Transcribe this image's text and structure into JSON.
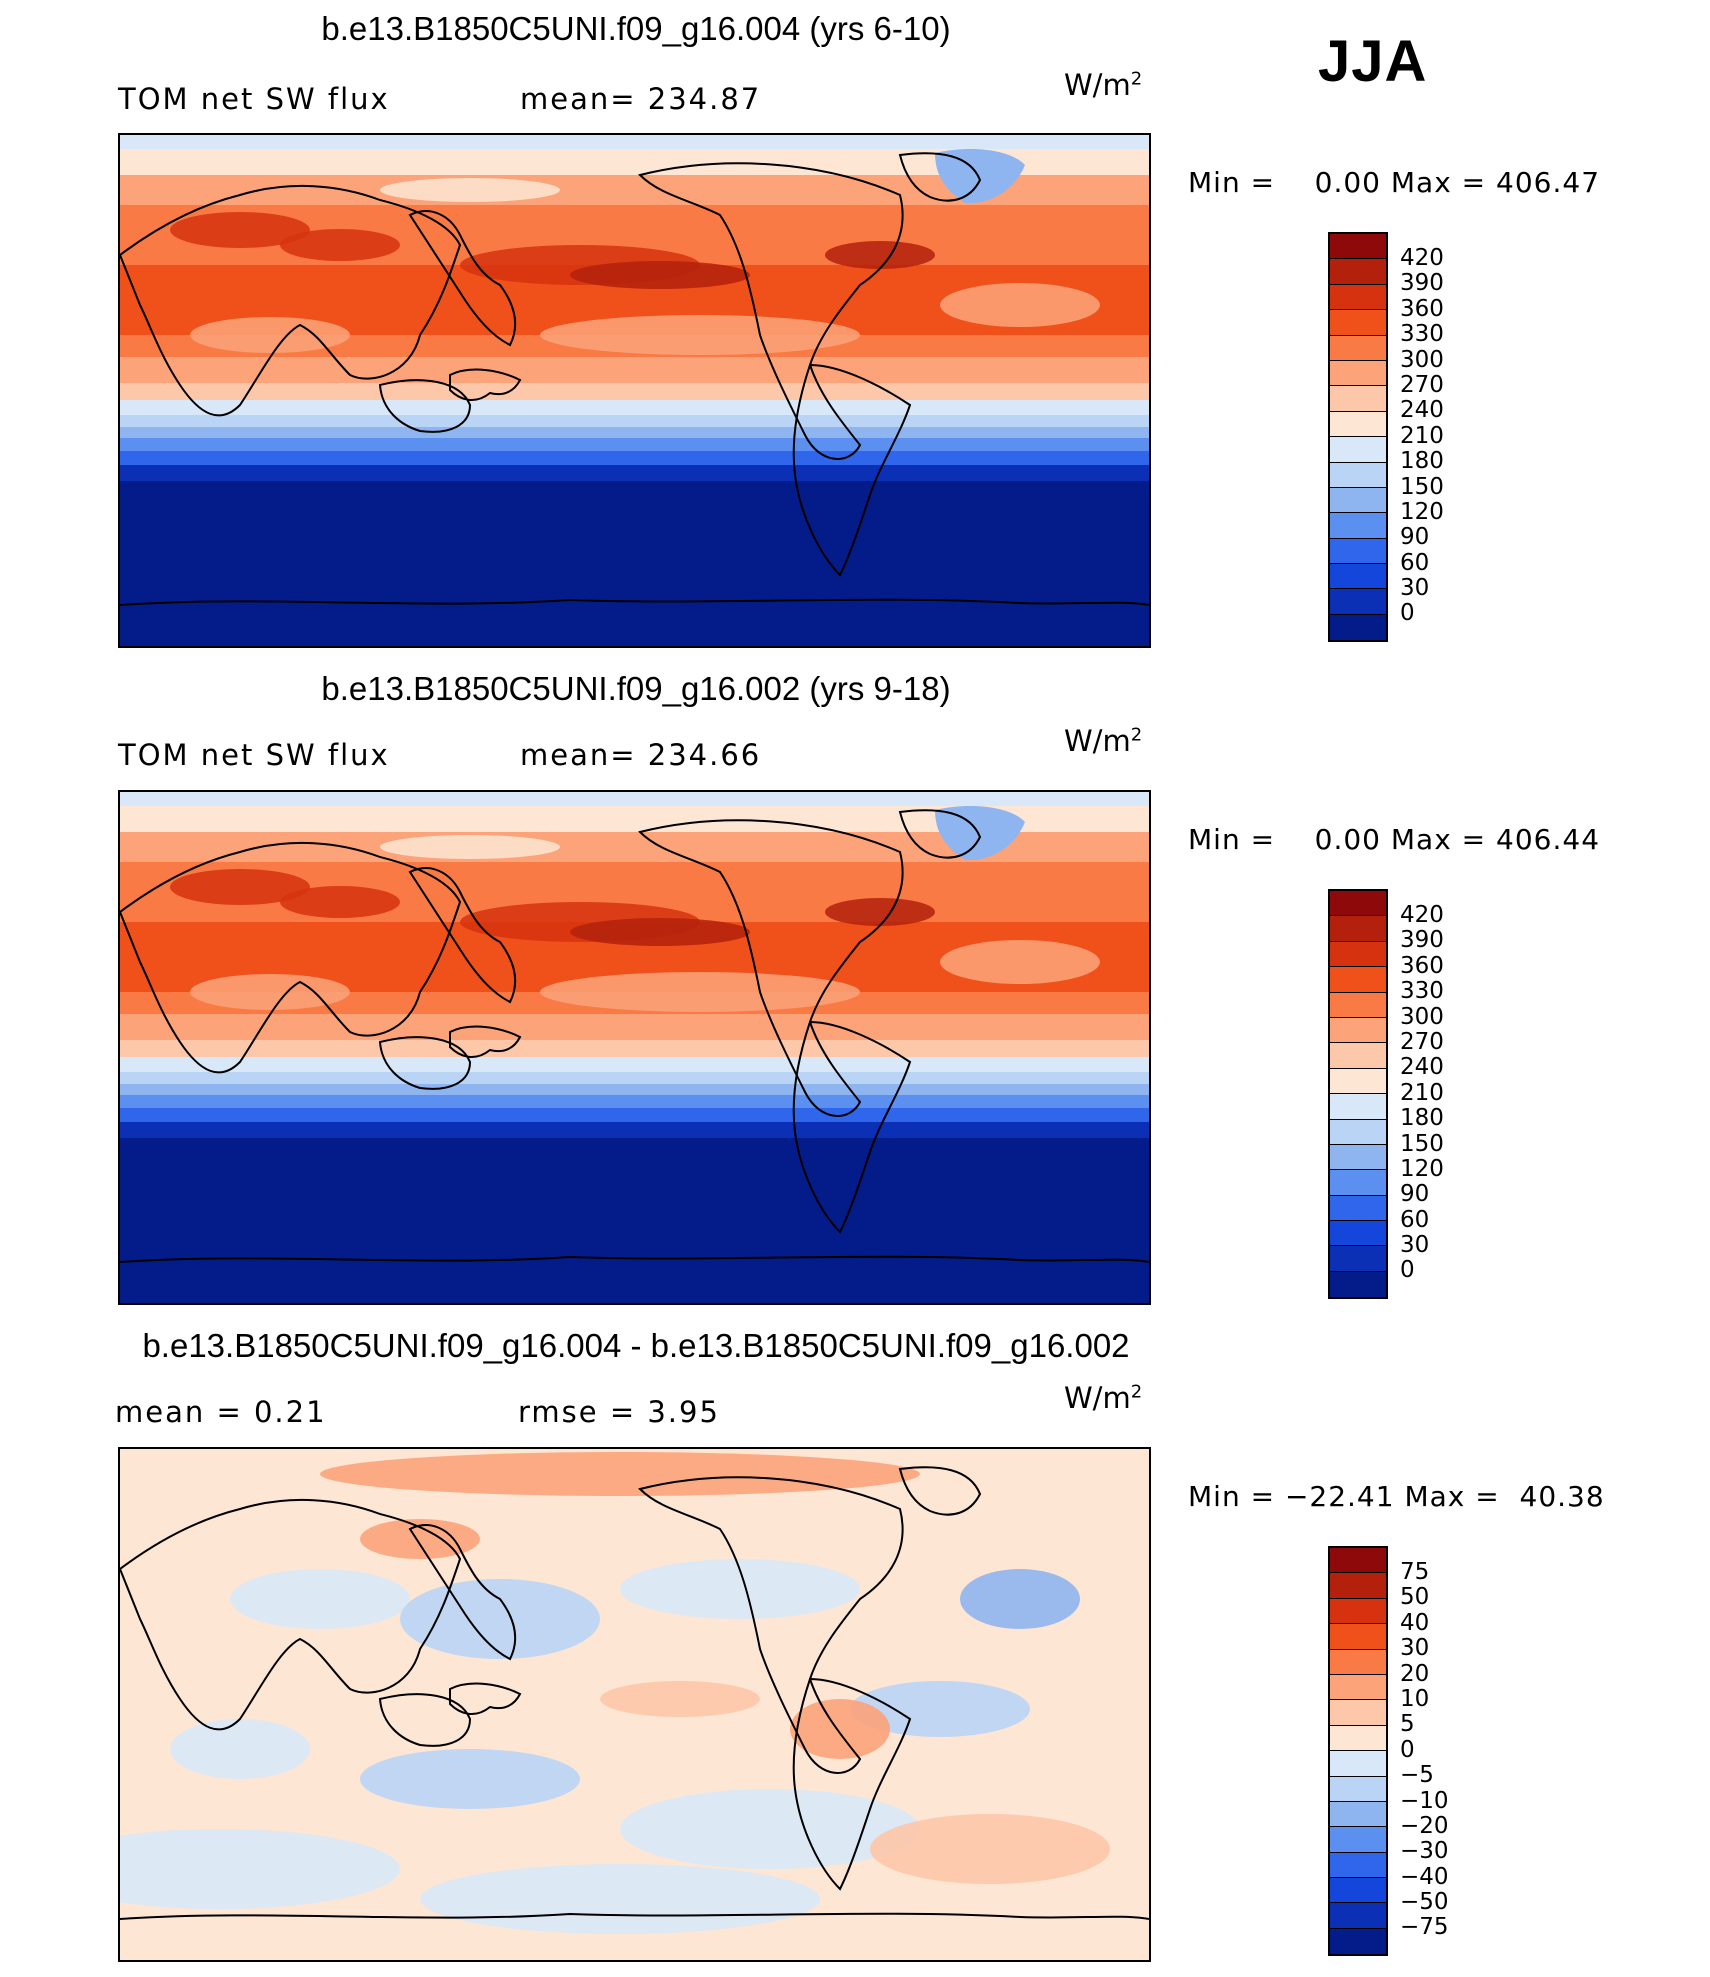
{
  "season": "JJA",
  "panels": [
    {
      "title": "b.e13.B1850C5UNI.f09_g16.004 (yrs 6-10)",
      "label_left": "TOM net SW flux",
      "label_mid": "mean= 234.87",
      "units": "W/m",
      "units_sup": "2",
      "minmax": "Min =    0.00 Max = 406.47",
      "colorbar": {
        "labels": [
          "420",
          "390",
          "360",
          "330",
          "300",
          "270",
          "240",
          "210",
          "180",
          "150",
          "120",
          "90",
          "60",
          "30",
          "0"
        ],
        "colors": [
          "#8e0a0a",
          "#b3210d",
          "#d6320f",
          "#f0501a",
          "#f97a44",
          "#fca37a",
          "#fdc7a9",
          "#fde6d4",
          "#d9e8f8",
          "#b9d4f5",
          "#8fb5f0",
          "#5b8ff0",
          "#2f66eb",
          "#1446dc",
          "#0b2fb5",
          "#041c8a"
        ]
      },
      "field": "abs"
    },
    {
      "title": "b.e13.B1850C5UNI.f09_g16.002 (yrs 9-18)",
      "label_left": "TOM net SW flux",
      "label_mid": "mean= 234.66",
      "units": "W/m",
      "units_sup": "2",
      "minmax": "Min =    0.00 Max = 406.44",
      "colorbar": {
        "labels": [
          "420",
          "390",
          "360",
          "330",
          "300",
          "270",
          "240",
          "210",
          "180",
          "150",
          "120",
          "90",
          "60",
          "30",
          "0"
        ],
        "colors": [
          "#8e0a0a",
          "#b3210d",
          "#d6320f",
          "#f0501a",
          "#f97a44",
          "#fca37a",
          "#fdc7a9",
          "#fde6d4",
          "#d9e8f8",
          "#b9d4f5",
          "#8fb5f0",
          "#5b8ff0",
          "#2f66eb",
          "#1446dc",
          "#0b2fb5",
          "#041c8a"
        ]
      },
      "field": "abs"
    },
    {
      "title": "b.e13.B1850C5UNI.f09_g16.004 - b.e13.B1850C5UNI.f09_g16.002",
      "label_left": "mean =    0.21",
      "label_mid": "rmse =    3.95",
      "units": "W/m",
      "units_sup": "2",
      "minmax": "Min = −22.41 Max =  40.38",
      "colorbar": {
        "labels": [
          "75",
          "50",
          "40",
          "30",
          "20",
          "10",
          "5",
          "0",
          "−5",
          "−10",
          "−20",
          "−30",
          "−40",
          "−50",
          "−75"
        ],
        "colors": [
          "#8e0a0a",
          "#b3210d",
          "#d6320f",
          "#f0501a",
          "#f97a44",
          "#fca37a",
          "#fdc7a9",
          "#fde6d4",
          "#d9e8f8",
          "#b9d4f5",
          "#8fb5f0",
          "#5b8ff0",
          "#2f66eb",
          "#1446dc",
          "#0b2fb5",
          "#041c8a"
        ]
      },
      "field": "diff"
    }
  ]
}
